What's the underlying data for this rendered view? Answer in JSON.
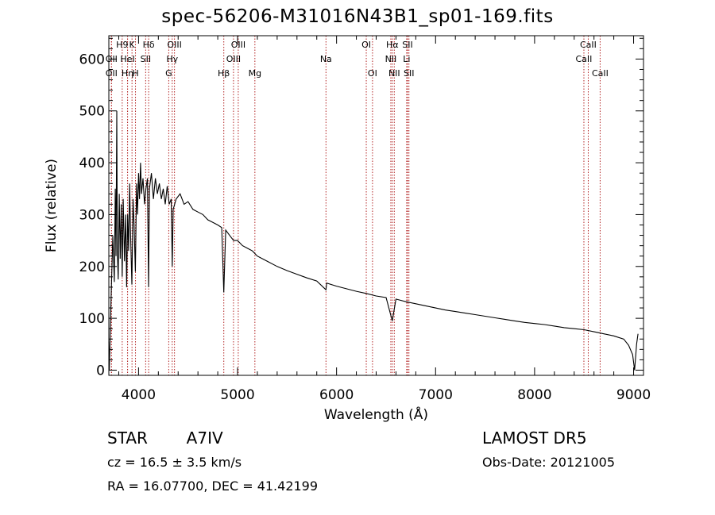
{
  "chart_data": {
    "type": "line",
    "title": "spec-56206-M31016N43B1_sp01-169.fits",
    "xlabel": "Wavelength (Å)",
    "ylabel": "Flux (relative)",
    "xlim": [
      3700,
      9100
    ],
    "ylim": [
      -10,
      645
    ],
    "xticks": [
      4000,
      5000,
      6000,
      7000,
      8000,
      9000
    ],
    "yticks": [
      0,
      100,
      200,
      300,
      400,
      500,
      600
    ],
    "grid": false,
    "spectrum_points": [
      [
        3700,
        55
      ],
      [
        3705,
        0
      ],
      [
        3720,
        120
      ],
      [
        3740,
        260
      ],
      [
        3755,
        170
      ],
      [
        3765,
        350
      ],
      [
        3772,
        220
      ],
      [
        3780,
        500
      ],
      [
        3786,
        230
      ],
      [
        3795,
        175
      ],
      [
        3805,
        340
      ],
      [
        3815,
        215
      ],
      [
        3825,
        320
      ],
      [
        3835,
        180
      ],
      [
        3845,
        330
      ],
      [
        3858,
        210
      ],
      [
        3870,
        300
      ],
      [
        3880,
        160
      ],
      [
        3890,
        300
      ],
      [
        3900,
        230
      ],
      [
        3910,
        360
      ],
      [
        3920,
        260
      ],
      [
        3933,
        165
      ],
      [
        3945,
        330
      ],
      [
        3955,
        280
      ],
      [
        3968,
        190
      ],
      [
        3980,
        360
      ],
      [
        3990,
        300
      ],
      [
        4000,
        380
      ],
      [
        4010,
        330
      ],
      [
        4020,
        400
      ],
      [
        4030,
        340
      ],
      [
        4045,
        370
      ],
      [
        4060,
        320
      ],
      [
        4075,
        350
      ],
      [
        4090,
        370
      ],
      [
        4101,
        160
      ],
      [
        4110,
        350
      ],
      [
        4130,
        380
      ],
      [
        4150,
        330
      ],
      [
        4170,
        370
      ],
      [
        4190,
        340
      ],
      [
        4210,
        360
      ],
      [
        4230,
        330
      ],
      [
        4250,
        350
      ],
      [
        4270,
        320
      ],
      [
        4290,
        355
      ],
      [
        4310,
        320
      ],
      [
        4330,
        330
      ],
      [
        4340,
        200
      ],
      [
        4350,
        310
      ],
      [
        4380,
        330
      ],
      [
        4420,
        340
      ],
      [
        4460,
        320
      ],
      [
        4500,
        325
      ],
      [
        4550,
        310
      ],
      [
        4600,
        305
      ],
      [
        4650,
        300
      ],
      [
        4700,
        290
      ],
      [
        4750,
        285
      ],
      [
        4800,
        280
      ],
      [
        4840,
        275
      ],
      [
        4861,
        150
      ],
      [
        4880,
        270
      ],
      [
        4920,
        260
      ],
      [
        4960,
        250
      ],
      [
        5000,
        250
      ],
      [
        5050,
        240
      ],
      [
        5100,
        235
      ],
      [
        5150,
        230
      ],
      [
        5200,
        220
      ],
      [
        5250,
        215
      ],
      [
        5300,
        210
      ],
      [
        5400,
        200
      ],
      [
        5500,
        192
      ],
      [
        5600,
        185
      ],
      [
        5700,
        178
      ],
      [
        5800,
        172
      ],
      [
        5893,
        155
      ],
      [
        5900,
        168
      ],
      [
        6000,
        162
      ],
      [
        6100,
        157
      ],
      [
        6200,
        152
      ],
      [
        6300,
        148
      ],
      [
        6400,
        143
      ],
      [
        6500,
        140
      ],
      [
        6563,
        95
      ],
      [
        6600,
        137
      ],
      [
        6700,
        132
      ],
      [
        6800,
        128
      ],
      [
        6900,
        124
      ],
      [
        7000,
        120
      ],
      [
        7100,
        116
      ],
      [
        7200,
        113
      ],
      [
        7300,
        110
      ],
      [
        7400,
        107
      ],
      [
        7500,
        104
      ],
      [
        7600,
        101
      ],
      [
        7700,
        98
      ],
      [
        7800,
        95
      ],
      [
        7900,
        92
      ],
      [
        8000,
        90
      ],
      [
        8100,
        88
      ],
      [
        8200,
        85
      ],
      [
        8300,
        82
      ],
      [
        8400,
        80
      ],
      [
        8500,
        78
      ],
      [
        8600,
        74
      ],
      [
        8700,
        70
      ],
      [
        8800,
        66
      ],
      [
        8900,
        60
      ],
      [
        8950,
        48
      ],
      [
        8990,
        30
      ],
      [
        9010,
        0
      ],
      [
        9030,
        50
      ],
      [
        9045,
        70
      ]
    ],
    "emission_lines": [
      {
        "label": "OII",
        "x": 3727,
        "row": 3
      },
      {
        "label": "H9",
        "x": 3835,
        "row": 1
      },
      {
        "label": "Hη",
        "x": 3889,
        "row": 3
      },
      {
        "label": "K",
        "x": 3934,
        "row": 1
      },
      {
        "label": "H",
        "x": 3969,
        "row": 3
      },
      {
        "label": "HeI",
        "x": 3889,
        "row": 2
      },
      {
        "label": "Hδ",
        "x": 4102,
        "row": 1
      },
      {
        "label": "SII",
        "x": 4072,
        "row": 2
      },
      {
        "label": "OII",
        "x": 3727,
        "row": 2
      },
      {
        "label": "OIII",
        "x": 4363,
        "row": 1
      },
      {
        "label": "Hγ",
        "x": 4340,
        "row": 2
      },
      {
        "label": "G",
        "x": 4305,
        "row": 3
      },
      {
        "label": "OIII",
        "x": 5007,
        "row": 1
      },
      {
        "label": "OIII",
        "x": 4959,
        "row": 2
      },
      {
        "label": "Hβ",
        "x": 4861,
        "row": 3
      },
      {
        "label": "Mg",
        "x": 5175,
        "row": 3
      },
      {
        "label": "Na",
        "x": 5893,
        "row": 2
      },
      {
        "label": "OI",
        "x": 6300,
        "row": 1
      },
      {
        "label": "OI",
        "x": 6363,
        "row": 3
      },
      {
        "label": "Hα",
        "x": 6563,
        "row": 1
      },
      {
        "label": "SII",
        "x": 6717,
        "row": 1
      },
      {
        "label": "NII",
        "x": 6548,
        "row": 2
      },
      {
        "label": "Li",
        "x": 6708,
        "row": 2
      },
      {
        "label": "NII",
        "x": 6583,
        "row": 3
      },
      {
        "label": "SII",
        "x": 6731,
        "row": 3
      },
      {
        "label": "CaII",
        "x": 8542,
        "row": 1
      },
      {
        "label": "CaII",
        "x": 8498,
        "row": 2
      },
      {
        "label": "CaII",
        "x": 8662,
        "row": 3
      }
    ]
  },
  "info": {
    "object_type": "STAR",
    "spectral_class": "A7IV",
    "redshift": "cz = 16.5 ± 3.5 km/s",
    "coords": "RA =  16.07700, DEC =  41.42199",
    "survey": "LAMOST  DR5",
    "obs_date": "Obs-Date: 20121005"
  },
  "colors": {
    "line_marker": "#b22222",
    "spectrum": "#000000",
    "axes": "#000000"
  }
}
